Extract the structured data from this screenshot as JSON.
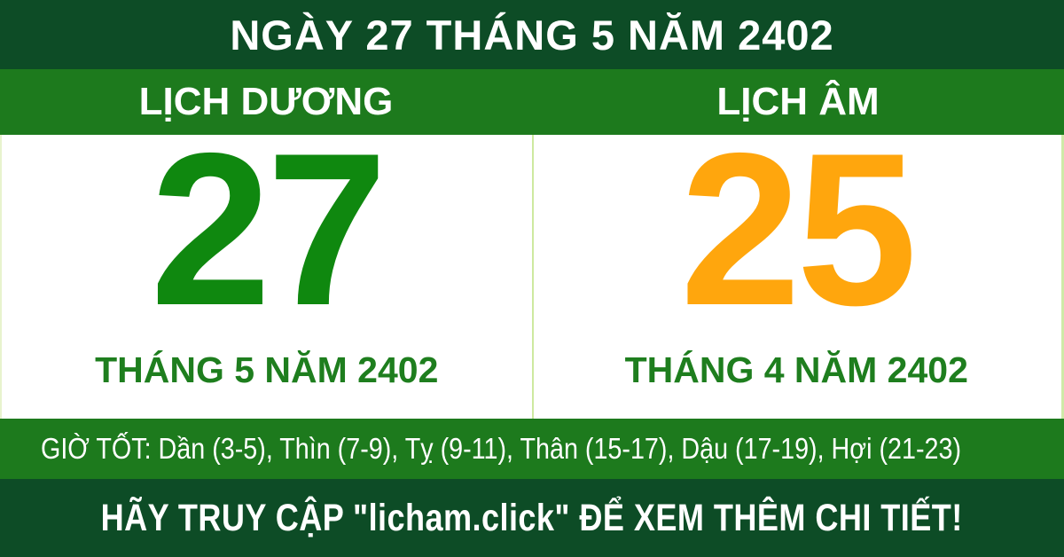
{
  "header": {
    "title": "NGÀY 27 THÁNG 5 NĂM 2402"
  },
  "calendars": {
    "solar": {
      "label": "LỊCH DƯƠNG",
      "day": "27",
      "month_year": "THÁNG 5 NĂM 2402"
    },
    "lunar": {
      "label": "LỊCH ÂM",
      "day": "25",
      "month_year": "THÁNG 4 NĂM 2402"
    }
  },
  "good_hours": {
    "text": "GIỜ TỐT: Dần (3-5), Thìn (7-9), Tỵ (9-11), Thân (15-17), Dậu (17-19), Hợi (21-23)"
  },
  "footer": {
    "text": "HÃY TRUY CẬP \"licham.click\" ĐỂ XEM THÊM CHI TIẾT!"
  },
  "colors": {
    "dark_green": "#0d4c26",
    "bright_green": "#1d7a1d",
    "day_green": "#0f880f",
    "day_orange": "#ffa60d",
    "month_green": "#1e7e1e",
    "divider_light_green": "#cde9a0",
    "text_white": "#ffffff",
    "background_white": "#ffffff"
  }
}
